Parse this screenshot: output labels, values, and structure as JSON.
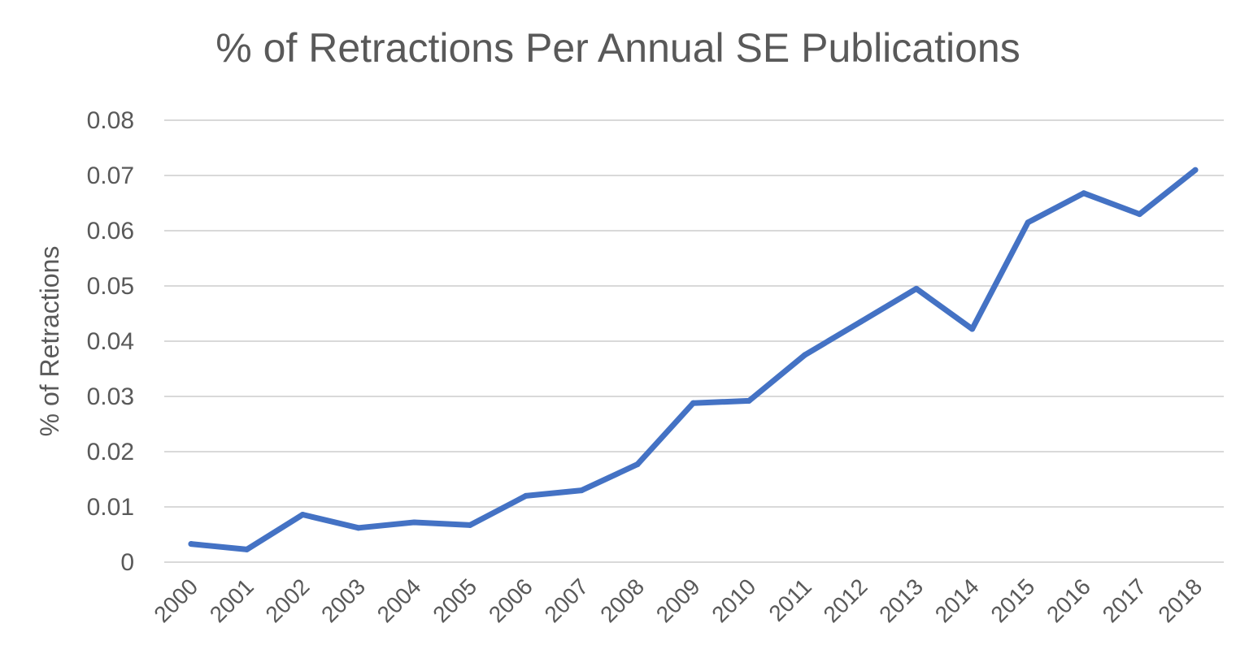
{
  "chart_data": {
    "type": "line",
    "title": "% of Retractions Per Annual SE Publications",
    "xlabel": "",
    "ylabel": "% of Retractions",
    "categories": [
      "2000",
      "2001",
      "2002",
      "2003",
      "2004",
      "2005",
      "2006",
      "2007",
      "2008",
      "2009",
      "2010",
      "2011",
      "2012",
      "2013",
      "2014",
      "2015",
      "2016",
      "2017",
      "2018"
    ],
    "series": [
      {
        "values": [
          0.0033,
          0.0023,
          0.0086,
          0.0062,
          0.0072,
          0.0067,
          0.012,
          0.013,
          0.0177,
          0.0288,
          0.0292,
          0.0375,
          0.0435,
          0.0495,
          0.0422,
          0.0615,
          0.0668,
          0.063,
          0.071
        ],
        "color": "#4472c4"
      }
    ],
    "ylim": [
      0,
      0.08
    ],
    "yticks": [
      "0",
      "0.01",
      "0.02",
      "0.03",
      "0.04",
      "0.05",
      "0.06",
      "0.07",
      "0.08"
    ],
    "grid": true,
    "legend": "none"
  }
}
